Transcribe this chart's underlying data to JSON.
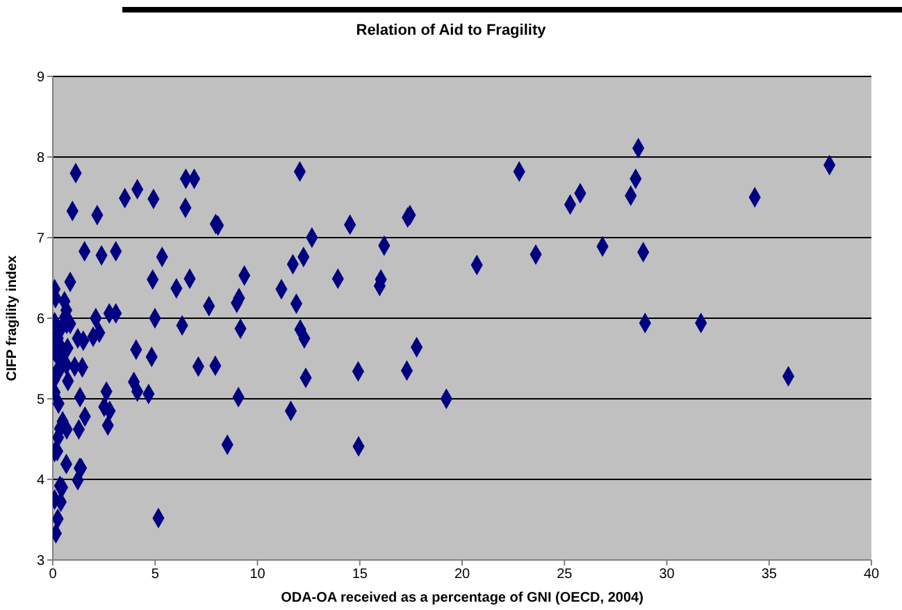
{
  "chart_data": {
    "type": "scatter",
    "title": "Relation of Aid to Fragility",
    "xlabel": "ODA-OA received as a percentage of GNI (OECD, 2004)",
    "ylabel": "CIFP fragility index",
    "xlim": [
      0,
      40
    ],
    "xticks": [
      0,
      5,
      10,
      15,
      20,
      25,
      30,
      35,
      40
    ],
    "ylim": [
      3,
      9
    ],
    "yticks": [
      3,
      4,
      5,
      6,
      7,
      8,
      9
    ],
    "grid": "y",
    "marker": "diamond",
    "series": [
      {
        "color": "#000080",
        "x": [
          1.12,
          0.96,
          2.17,
          3.52,
          4.13,
          4.92,
          6.5,
          6.48,
          1.55,
          2.38,
          3.08,
          5.34,
          4.88,
          6.04,
          6.69,
          0.09,
          0.13,
          0.85,
          0.57,
          0.66,
          0.09,
          0.61,
          0.44,
          0.68,
          0.85,
          2.1,
          2.76,
          3.08,
          4.99,
          6.32,
          0.13,
          0.24,
          1.22,
          1.49,
          1.97,
          2.27,
          0.35,
          0.72,
          0.52,
          0.07,
          0.31,
          0.66,
          0.35,
          1.07,
          1.44,
          4.07,
          4.83,
          0.13,
          0.07,
          0.74,
          3.96,
          4.13,
          4.68,
          2.62,
          0.09,
          1.33,
          0.28,
          2.51,
          2.78,
          1.57,
          0.48,
          0.35,
          0.68,
          1.27,
          2.69,
          0.26,
          0.09,
          0.22,
          0.66,
          1.31,
          1.38,
          1.22,
          0.35,
          0.46,
          0.09,
          0.39,
          0.24,
          0.15,
          5.16,
          6.91,
          12.07,
          7.96,
          8.07,
          14.52,
          12.66,
          16.19,
          12.25,
          11.73,
          9.36,
          11.17,
          13.93,
          16.03,
          15.97,
          7.63,
          9.1,
          8.99,
          11.9,
          9.17,
          12.09,
          12.29,
          7.11,
          7.94,
          14.92,
          12.36,
          9.07,
          11.63,
          8.53,
          14.94,
          28.61,
          37.95,
          22.79,
          28.48,
          25.77,
          28.24,
          34.3,
          25.28,
          17.34,
          17.45,
          26.86,
          28.85,
          23.6,
          20.72,
          28.94,
          31.67,
          17.78,
          17.3,
          35.94,
          19.23
        ],
        "values": [
          7.8,
          7.33,
          7.28,
          7.49,
          7.6,
          7.48,
          7.73,
          7.37,
          6.83,
          6.78,
          6.83,
          6.76,
          6.48,
          6.37,
          6.49,
          6.36,
          6.25,
          6.45,
          6.21,
          6.1,
          5.95,
          6.02,
          5.89,
          5.93,
          5.93,
          6.0,
          6.06,
          6.06,
          6.0,
          5.91,
          5.77,
          5.75,
          5.75,
          5.72,
          5.77,
          5.82,
          5.66,
          5.63,
          5.57,
          5.59,
          5.49,
          5.42,
          5.37,
          5.4,
          5.39,
          5.61,
          5.52,
          5.31,
          5.24,
          5.22,
          5.21,
          5.09,
          5.06,
          5.09,
          5.08,
          5.02,
          4.94,
          4.9,
          4.85,
          4.78,
          4.72,
          4.63,
          4.62,
          4.62,
          4.67,
          4.52,
          4.34,
          4.35,
          4.19,
          4.14,
          4.14,
          3.99,
          3.92,
          3.9,
          3.75,
          3.72,
          3.51,
          3.33,
          3.52,
          7.73,
          7.82,
          7.17,
          7.15,
          7.16,
          7.0,
          6.9,
          6.76,
          6.67,
          6.53,
          6.36,
          6.49,
          6.48,
          6.4,
          6.15,
          6.25,
          6.19,
          6.18,
          5.87,
          5.86,
          5.75,
          5.4,
          5.41,
          5.34,
          5.26,
          5.02,
          4.85,
          4.43,
          4.41,
          8.11,
          7.9,
          7.82,
          7.73,
          7.55,
          7.52,
          7.5,
          7.41,
          7.25,
          7.28,
          6.89,
          6.82,
          6.79,
          6.66,
          5.94,
          5.94,
          5.64,
          5.35,
          5.28,
          5.0
        ]
      }
    ]
  }
}
